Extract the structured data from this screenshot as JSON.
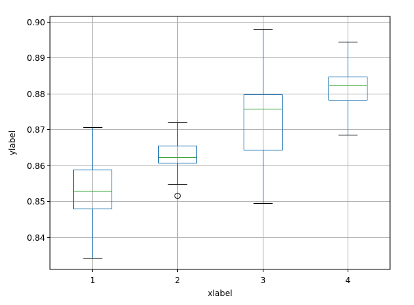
{
  "chart_data": {
    "type": "box",
    "title": "",
    "xlabel": "xlabel",
    "ylabel": "ylabel",
    "categories": [
      "1",
      "2",
      "3",
      "4"
    ],
    "ylim": [
      0.831,
      0.9015
    ],
    "yticks": [
      0.84,
      0.85,
      0.86,
      0.87,
      0.88,
      0.89,
      0.9
    ],
    "ytick_labels": [
      "0.84",
      "0.85",
      "0.86",
      "0.87",
      "0.88",
      "0.89",
      "0.90"
    ],
    "grid": true,
    "boxes": [
      {
        "label": "1",
        "whisker_low": 0.8343,
        "q1": 0.8479,
        "median": 0.853,
        "q3": 0.8589,
        "whisker_high": 0.8706,
        "outliers": []
      },
      {
        "label": "2",
        "whisker_low": 0.8549,
        "q1": 0.8607,
        "median": 0.8623,
        "q3": 0.8655,
        "whisker_high": 0.8719,
        "outliers": [
          0.8515
        ]
      },
      {
        "label": "3",
        "whisker_low": 0.8494,
        "q1": 0.8644,
        "median": 0.8758,
        "q3": 0.8797,
        "whisker_high": 0.8978,
        "outliers": []
      },
      {
        "label": "4",
        "whisker_low": 0.8685,
        "q1": 0.8782,
        "median": 0.8822,
        "q3": 0.8848,
        "whisker_high": 0.8945,
        "outliers": []
      }
    ],
    "colors": {
      "box": "#1f77b4",
      "median": "#2ca02c",
      "whisker": "#1f77b4",
      "cap": "#000000",
      "outlier": "#000000",
      "grid": "#b0b0b0",
      "axes": "#000000"
    }
  }
}
